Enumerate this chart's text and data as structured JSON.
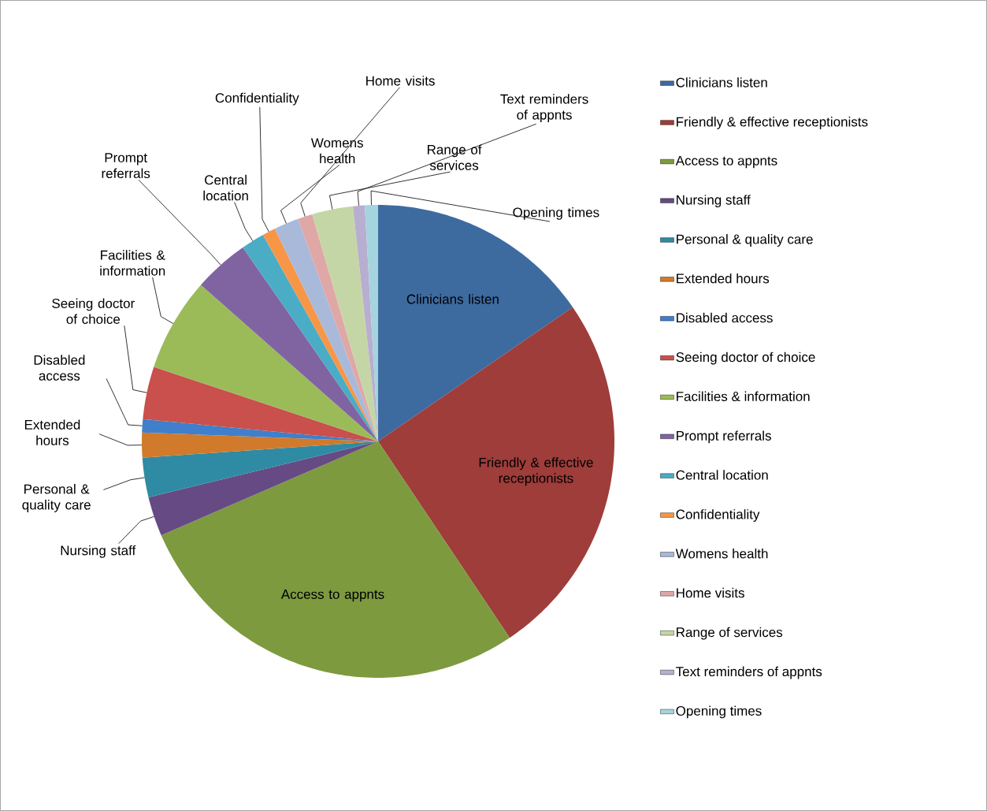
{
  "chart_data": {
    "type": "pie",
    "categories": [
      "Clinicians listen",
      "Friendly & effective receptionists",
      "Access to appnts",
      "Nursing staff",
      "Personal & quality care",
      "Extended hours",
      "Disabled access",
      "Seeing doctor of choice",
      "Facilities & information",
      "Prompt referrals",
      "Central location",
      "Confidentiality",
      "Womens health",
      "Home visits",
      "Range of services",
      "Text reminders of appnts",
      "Opening times"
    ],
    "values": [
      15.4,
      25.2,
      27.9,
      2.7,
      2.7,
      1.7,
      0.9,
      3.6,
      6.4,
      3.8,
      1.6,
      0.9,
      1.7,
      1.0,
      2.8,
      0.8,
      0.9
    ],
    "colors": [
      "#3d6ba0",
      "#9e3d3a",
      "#7d9a3f",
      "#664a84",
      "#2f8ba3",
      "#d17a2b",
      "#3f7fcb",
      "#c9504c",
      "#9bbb59",
      "#8064a2",
      "#4bacc6",
      "#f79646",
      "#a9b9da",
      "#dfa7a6",
      "#c5d6a6",
      "#b8aed0",
      "#a5d3de"
    ],
    "legend": "right"
  }
}
